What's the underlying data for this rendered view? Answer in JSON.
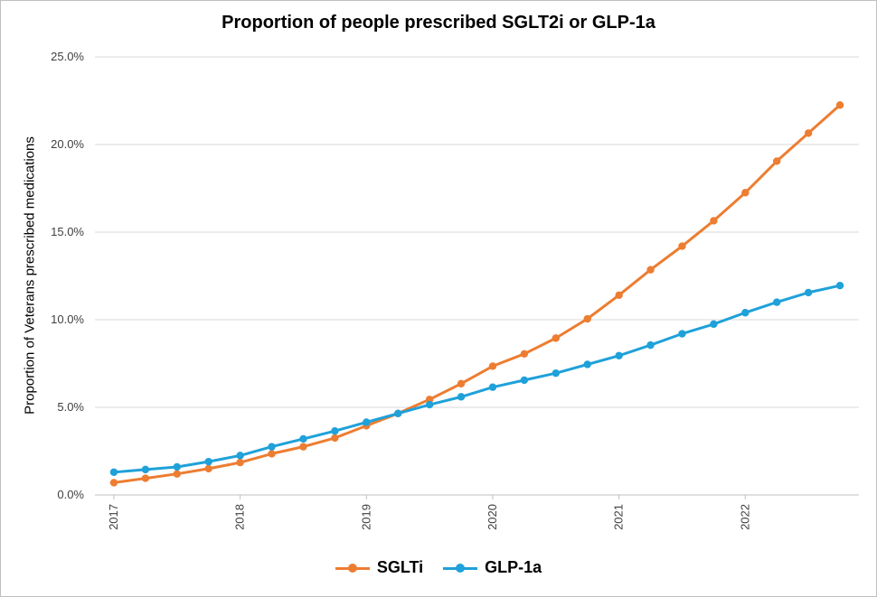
{
  "chart_data": {
    "type": "line",
    "title": "Proportion of people prescribed SGLT2i or GLP-1a",
    "ylabel": "Proportion of Veterans prescribed medications",
    "xlabel": "",
    "ylim": [
      0,
      25
    ],
    "yticks": [
      "0.0%",
      "5.0%",
      "10.0%",
      "15.0%",
      "20.0%",
      "25.0%"
    ],
    "xticks": [
      "2017",
      "2018",
      "2019",
      "2020",
      "2021",
      "2022"
    ],
    "x": [
      2017.0,
      2017.25,
      2017.5,
      2017.75,
      2018.0,
      2018.25,
      2018.5,
      2018.75,
      2019.0,
      2019.25,
      2019.5,
      2019.75,
      2020.0,
      2020.25,
      2020.5,
      2020.75,
      2021.0,
      2021.25,
      2021.5,
      2021.75,
      2022.0,
      2022.25,
      2022.5,
      2022.75
    ],
    "grid": true,
    "legend_position": "bottom",
    "series": [
      {
        "name": "SGLTi",
        "color": "#ed7d31",
        "values": [
          0.7,
          0.95,
          1.2,
          1.5,
          1.85,
          2.35,
          2.75,
          3.25,
          3.95,
          4.65,
          5.45,
          6.35,
          7.35,
          8.05,
          8.95,
          10.05,
          11.4,
          12.85,
          14.2,
          15.65,
          17.25,
          19.05,
          20.65,
          22.25
        ]
      },
      {
        "name": "GLP-1a",
        "color": "#1fa1d9",
        "values": [
          1.3,
          1.45,
          1.6,
          1.9,
          2.25,
          2.75,
          3.2,
          3.65,
          4.15,
          4.65,
          5.15,
          5.6,
          6.15,
          6.55,
          6.95,
          7.45,
          7.95,
          8.55,
          9.2,
          9.75,
          10.4,
          11.0,
          11.55,
          11.95
        ]
      }
    ]
  }
}
